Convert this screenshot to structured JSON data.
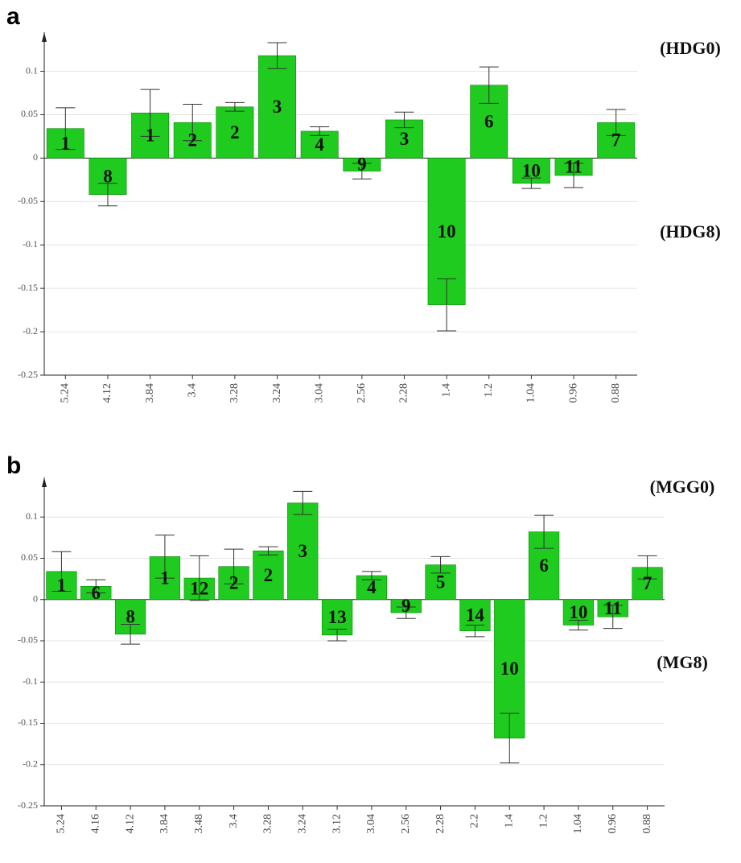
{
  "chart_data": [
    {
      "type": "bar",
      "panel_label": "a",
      "label_top": "(HDG0)",
      "label_bottom": "(HDG8)",
      "color": "#1ecb1e",
      "grid": true,
      "categories": [
        "5.24",
        "4.12",
        "3.84",
        "3.4",
        "3.28",
        "3.24",
        "3.04",
        "2.56",
        "2.28",
        "1.4",
        "1.2",
        "1.04",
        "0.96",
        "0.88"
      ],
      "bar_labels": [
        "1",
        "8",
        "1",
        "2",
        "2",
        "3",
        "4",
        "9",
        "3",
        "10",
        "6",
        "10",
        "11",
        "7"
      ],
      "values": [
        0.034,
        -0.042,
        0.052,
        0.041,
        0.059,
        0.118,
        0.031,
        -0.015,
        0.044,
        -0.169,
        0.084,
        -0.029,
        -0.02,
        0.041
      ],
      "errors": [
        0.024,
        0.013,
        0.027,
        0.021,
        0.005,
        0.015,
        0.005,
        0.009,
        0.009,
        0.03,
        0.021,
        0.006,
        0.014,
        0.015
      ],
      "ylim": [
        -0.25,
        0.145
      ],
      "yticks": [
        -0.25,
        -0.2,
        -0.15,
        -0.1,
        -0.05,
        0,
        0.05,
        0.1
      ]
    },
    {
      "type": "bar",
      "panel_label": "b",
      "label_top": "(MGG0)",
      "label_bottom": "(MG8)",
      "color": "#1ecb1e",
      "grid": true,
      "categories": [
        "5.24",
        "4.16",
        "4.12",
        "3.84",
        "3.48",
        "3.4",
        "3.28",
        "3.24",
        "3.12",
        "3.04",
        "2.56",
        "2.28",
        "2.2",
        "1.4",
        "1.2",
        "1.04",
        "0.96",
        "0.88"
      ],
      "bar_labels": [
        "1",
        "6",
        "8",
        "1",
        "12",
        "2",
        "2",
        "3",
        "13",
        "4",
        "9",
        "5",
        "14",
        "10",
        "6",
        "10",
        "11",
        "7"
      ],
      "values": [
        0.034,
        0.016,
        -0.042,
        0.052,
        0.026,
        0.04,
        0.059,
        0.117,
        -0.043,
        0.029,
        -0.016,
        0.042,
        -0.038,
        -0.168,
        0.082,
        -0.031,
        -0.021,
        0.039
      ],
      "errors": [
        0.024,
        0.008,
        0.012,
        0.026,
        0.027,
        0.021,
        0.005,
        0.014,
        0.007,
        0.005,
        0.007,
        0.01,
        0.007,
        0.03,
        0.02,
        0.006,
        0.014,
        0.014
      ],
      "ylim": [
        -0.25,
        0.148
      ],
      "yticks": [
        -0.25,
        -0.2,
        -0.15,
        -0.1,
        -0.05,
        0,
        0.05,
        0.1
      ]
    }
  ]
}
